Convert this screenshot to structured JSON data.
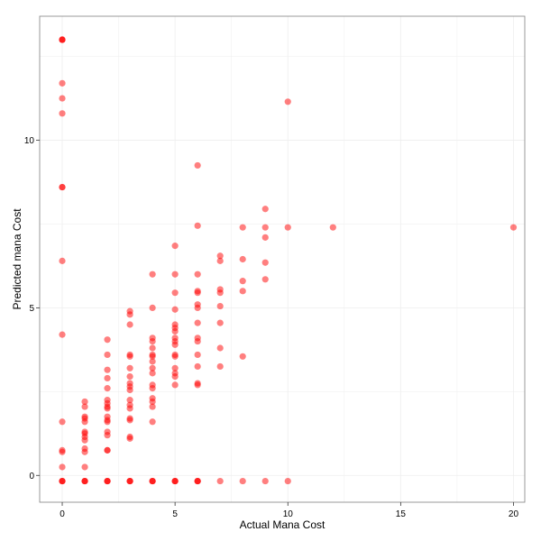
{
  "chart_data": {
    "type": "scatter",
    "title": "",
    "xlabel": "Actual Mana Cost",
    "ylabel": "Predicted mana Cost",
    "xlim": [
      -1,
      20.5
    ],
    "ylim": [
      -0.8,
      13.7
    ],
    "xticks": [
      0,
      5,
      10,
      15,
      20
    ],
    "yticks": [
      0,
      5,
      10
    ],
    "xtick_labels": [
      "0",
      "5",
      "10",
      "15",
      "20"
    ],
    "ytick_labels": [
      "0",
      "5",
      "10"
    ],
    "grid": true,
    "point_color": "#ff0000",
    "point_opacity": 0.5,
    "points": [
      {
        "x": 0,
        "y": 13.0
      },
      {
        "x": 0,
        "y": 13.0
      },
      {
        "x": 0,
        "y": 13.0
      },
      {
        "x": 0,
        "y": 11.7
      },
      {
        "x": 0,
        "y": 11.25
      },
      {
        "x": 0,
        "y": 10.8
      },
      {
        "x": 0,
        "y": 8.6
      },
      {
        "x": 0,
        "y": 8.6
      },
      {
        "x": 0,
        "y": 6.4
      },
      {
        "x": 0,
        "y": 4.2
      },
      {
        "x": 0,
        "y": 1.6
      },
      {
        "x": 0,
        "y": 0.75
      },
      {
        "x": 0,
        "y": 0.7
      },
      {
        "x": 0,
        "y": 0.25
      },
      {
        "x": 0,
        "y": -0.17
      },
      {
        "x": 0,
        "y": -0.17
      },
      {
        "x": 0,
        "y": -0.17
      },
      {
        "x": 1,
        "y": 2.2
      },
      {
        "x": 1,
        "y": 2.05
      },
      {
        "x": 1,
        "y": 1.75
      },
      {
        "x": 1,
        "y": 1.7
      },
      {
        "x": 1,
        "y": 1.6
      },
      {
        "x": 1,
        "y": 1.3
      },
      {
        "x": 1,
        "y": 1.25
      },
      {
        "x": 1,
        "y": 1.15
      },
      {
        "x": 1,
        "y": 1.05
      },
      {
        "x": 1,
        "y": 0.8
      },
      {
        "x": 1,
        "y": 0.7
      },
      {
        "x": 1,
        "y": 0.25
      },
      {
        "x": 1,
        "y": -0.17
      },
      {
        "x": 1,
        "y": -0.17
      },
      {
        "x": 1,
        "y": -0.17
      },
      {
        "x": 2,
        "y": 4.05
      },
      {
        "x": 2,
        "y": 3.6
      },
      {
        "x": 2,
        "y": 3.15
      },
      {
        "x": 2,
        "y": 2.9
      },
      {
        "x": 2,
        "y": 2.6
      },
      {
        "x": 2,
        "y": 2.25
      },
      {
        "x": 2,
        "y": 2.15
      },
      {
        "x": 2,
        "y": 2.05
      },
      {
        "x": 2,
        "y": 2.0
      },
      {
        "x": 2,
        "y": 1.75
      },
      {
        "x": 2,
        "y": 1.65
      },
      {
        "x": 2,
        "y": 1.6
      },
      {
        "x": 2,
        "y": 1.3
      },
      {
        "x": 2,
        "y": 1.2
      },
      {
        "x": 2,
        "y": 0.75
      },
      {
        "x": 2,
        "y": 0.75
      },
      {
        "x": 2,
        "y": -0.17
      },
      {
        "x": 2,
        "y": -0.17
      },
      {
        "x": 2,
        "y": -0.17
      },
      {
        "x": 3,
        "y": 4.9
      },
      {
        "x": 3,
        "y": 4.8
      },
      {
        "x": 3,
        "y": 4.5
      },
      {
        "x": 3,
        "y": 3.6
      },
      {
        "x": 3,
        "y": 3.55
      },
      {
        "x": 3,
        "y": 3.2
      },
      {
        "x": 3,
        "y": 2.95
      },
      {
        "x": 3,
        "y": 2.75
      },
      {
        "x": 3,
        "y": 2.65
      },
      {
        "x": 3,
        "y": 2.55
      },
      {
        "x": 3,
        "y": 2.25
      },
      {
        "x": 3,
        "y": 2.1
      },
      {
        "x": 3,
        "y": 2.0
      },
      {
        "x": 3,
        "y": 1.7
      },
      {
        "x": 3,
        "y": 1.65
      },
      {
        "x": 3,
        "y": 1.15
      },
      {
        "x": 3,
        "y": 1.1
      },
      {
        "x": 3,
        "y": -0.17
      },
      {
        "x": 3,
        "y": -0.17
      },
      {
        "x": 3,
        "y": -0.17
      },
      {
        "x": 4,
        "y": 6.0
      },
      {
        "x": 4,
        "y": 5.0
      },
      {
        "x": 4,
        "y": 4.1
      },
      {
        "x": 4,
        "y": 4.0
      },
      {
        "x": 4,
        "y": 3.8
      },
      {
        "x": 4,
        "y": 3.6
      },
      {
        "x": 4,
        "y": 3.55
      },
      {
        "x": 4,
        "y": 3.4
      },
      {
        "x": 4,
        "y": 3.2
      },
      {
        "x": 4,
        "y": 3.05
      },
      {
        "x": 4,
        "y": 2.7
      },
      {
        "x": 4,
        "y": 2.6
      },
      {
        "x": 4,
        "y": 2.3
      },
      {
        "x": 4,
        "y": 2.2
      },
      {
        "x": 4,
        "y": 2.05
      },
      {
        "x": 4,
        "y": 1.6
      },
      {
        "x": 4,
        "y": -0.17
      },
      {
        "x": 4,
        "y": -0.17
      },
      {
        "x": 4,
        "y": -0.17
      },
      {
        "x": 5,
        "y": 6.85
      },
      {
        "x": 5,
        "y": 6.0
      },
      {
        "x": 5,
        "y": 5.45
      },
      {
        "x": 5,
        "y": 4.95
      },
      {
        "x": 5,
        "y": 4.5
      },
      {
        "x": 5,
        "y": 4.4
      },
      {
        "x": 5,
        "y": 4.3
      },
      {
        "x": 5,
        "y": 4.1
      },
      {
        "x": 5,
        "y": 4.0
      },
      {
        "x": 5,
        "y": 3.9
      },
      {
        "x": 5,
        "y": 3.6
      },
      {
        "x": 5,
        "y": 3.55
      },
      {
        "x": 5,
        "y": 3.2
      },
      {
        "x": 5,
        "y": 3.05
      },
      {
        "x": 5,
        "y": 2.95
      },
      {
        "x": 5,
        "y": 2.7
      },
      {
        "x": 5,
        "y": -0.17
      },
      {
        "x": 5,
        "y": -0.17
      },
      {
        "x": 5,
        "y": -0.17
      },
      {
        "x": 6,
        "y": 9.25
      },
      {
        "x": 6,
        "y": 7.45
      },
      {
        "x": 6,
        "y": 6.0
      },
      {
        "x": 6,
        "y": 5.5
      },
      {
        "x": 6,
        "y": 5.45
      },
      {
        "x": 6,
        "y": 5.1
      },
      {
        "x": 6,
        "y": 5.0
      },
      {
        "x": 6,
        "y": 4.55
      },
      {
        "x": 6,
        "y": 4.1
      },
      {
        "x": 6,
        "y": 4.0
      },
      {
        "x": 6,
        "y": 3.6
      },
      {
        "x": 6,
        "y": 3.25
      },
      {
        "x": 6,
        "y": 2.75
      },
      {
        "x": 6,
        "y": 2.7
      },
      {
        "x": 6,
        "y": -0.17
      },
      {
        "x": 6,
        "y": -0.17
      },
      {
        "x": 6,
        "y": -0.17
      },
      {
        "x": 7,
        "y": 6.55
      },
      {
        "x": 7,
        "y": 6.4
      },
      {
        "x": 7,
        "y": 5.55
      },
      {
        "x": 7,
        "y": 5.45
      },
      {
        "x": 7,
        "y": 5.05
      },
      {
        "x": 7,
        "y": 4.55
      },
      {
        "x": 7,
        "y": 3.8
      },
      {
        "x": 7,
        "y": 3.25
      },
      {
        "x": 7,
        "y": -0.17
      },
      {
        "x": 8,
        "y": 7.4
      },
      {
        "x": 8,
        "y": 6.45
      },
      {
        "x": 8,
        "y": 5.8
      },
      {
        "x": 8,
        "y": 5.5
      },
      {
        "x": 8,
        "y": 3.55
      },
      {
        "x": 8,
        "y": -0.17
      },
      {
        "x": 9,
        "y": 7.95
      },
      {
        "x": 9,
        "y": 7.4
      },
      {
        "x": 9,
        "y": 7.1
      },
      {
        "x": 9,
        "y": 6.35
      },
      {
        "x": 9,
        "y": 5.85
      },
      {
        "x": 9,
        "y": -0.17
      },
      {
        "x": 10,
        "y": 11.15
      },
      {
        "x": 10,
        "y": 7.4
      },
      {
        "x": 10,
        "y": -0.17
      },
      {
        "x": 12,
        "y": 7.4
      },
      {
        "x": 20,
        "y": 7.4
      }
    ]
  }
}
